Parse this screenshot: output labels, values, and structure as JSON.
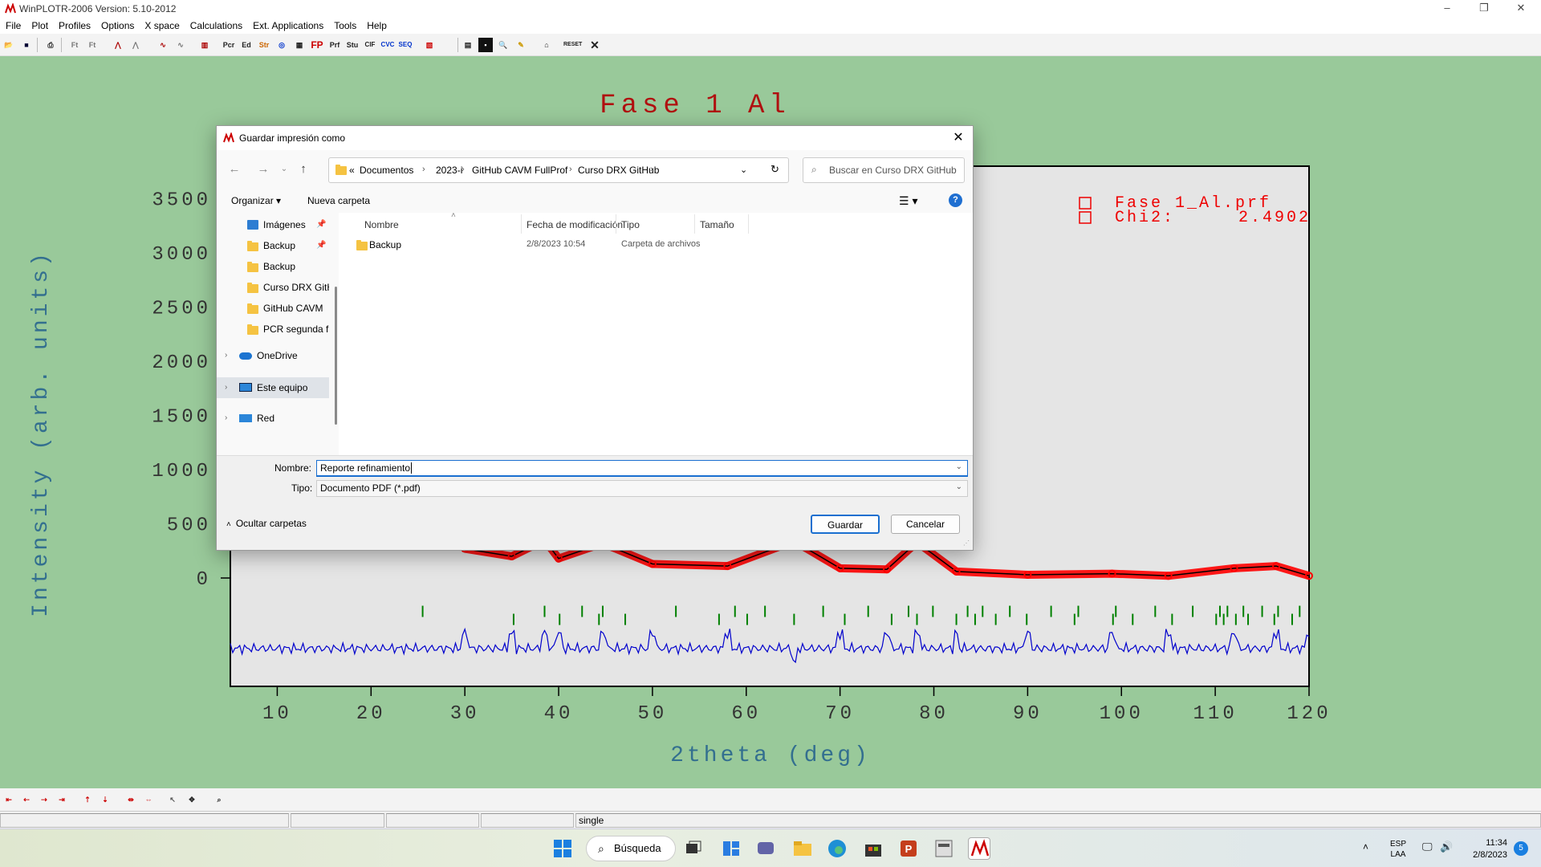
{
  "window": {
    "title": "WinPLOTR-2006 Version: 5.10-2012",
    "controls": [
      "–",
      "❐",
      "✕"
    ]
  },
  "menu": [
    "File",
    "Plot",
    "Profiles",
    "Options",
    "X space",
    "Calculations",
    "Ext. Applications",
    "Tools",
    "Help"
  ],
  "toolbar": {
    "buttons": [
      "Pcr",
      "Ed",
      "Str",
      "FP",
      "Prf",
      "Stu",
      "CIF",
      "CVC",
      "SEQ",
      "RESET"
    ]
  },
  "plot": {
    "title": "Fase 1 Al",
    "legend": [
      "Fase 1_Al.prf",
      "Chi2:",
      "2.4902"
    ],
    "xlabel": "2theta (deg)",
    "ylabel": "Intensity (arb. units)",
    "colors": {
      "background": "#99c99a",
      "observed": "#ff0000",
      "calculated": "#000000",
      "difference": "#0000cc",
      "bragg": "#008000",
      "axis_text": "#336f8f",
      "title": "#b01010"
    }
  },
  "chart_data": {
    "type": "line",
    "title": "Fase 1 Al",
    "xlabel": "2theta (deg)",
    "ylabel": "Intensity (arb. units)",
    "xlim": [
      5,
      120
    ],
    "ylim": [
      -1000,
      3800
    ],
    "xticks": [
      10,
      20,
      30,
      40,
      50,
      60,
      70,
      80,
      90,
      100,
      110,
      120
    ],
    "yticks": [
      0,
      500,
      1000,
      1500,
      2000,
      2500,
      3000,
      3500
    ],
    "series": [
      {
        "name": "Fase 1_Al.prf",
        "x": [
          30,
          35,
          38.5,
          40,
          44.7,
          50,
          58,
          65.1,
          70,
          75,
          78.2,
          82.4,
          90,
          99,
          105,
          112,
          116.5,
          120
        ],
        "y": [
          270,
          200,
          350,
          180,
          320,
          130,
          110,
          340,
          90,
          80,
          330,
          60,
          30,
          40,
          20,
          90,
          110,
          20
        ]
      }
    ],
    "bragg_positions": [
      25.5,
      35.2,
      38.5,
      40.1,
      42.5,
      44.3,
      44.7,
      47.1,
      52.5,
      57.1,
      58.8,
      60.1,
      62.0,
      65.1,
      68.2,
      70.5,
      73.0,
      75.5,
      77.3,
      78.2,
      79.9,
      82.4,
      83.6,
      84.4,
      85.2,
      86.6,
      88.1,
      89.9,
      92.5,
      95.0,
      95.4,
      99.1,
      99.4,
      101.2,
      103.6,
      105.4,
      107.6,
      110.1,
      110.5,
      110.9,
      111.3,
      112.2,
      113.0,
      113.5,
      115.0,
      116.3,
      116.7,
      118.2,
      119.0
    ]
  },
  "dialog": {
    "title": "Guardar impresión como",
    "path": [
      "Documentos",
      "2023-i",
      "GitHub CAVM",
      "FullProf",
      "Curso DRX GitHub"
    ],
    "path_prefix": "«",
    "search_placeholder": "Buscar en Curso DRX GitHub",
    "organize": "Organizar",
    "new_folder": "Nueva carpeta",
    "tree": [
      {
        "label": "Imágenes",
        "type": "pictures"
      },
      {
        "label": "Backup",
        "type": "folder"
      },
      {
        "label": "Backup",
        "type": "folder"
      },
      {
        "label": "Curso DRX GitH",
        "type": "folder"
      },
      {
        "label": "GitHub CAVM",
        "type": "folder"
      },
      {
        "label": "PCR segunda fa",
        "type": "folder"
      },
      {
        "label": "OneDrive",
        "type": "cloud"
      },
      {
        "label": "Este equipo",
        "type": "pc"
      },
      {
        "label": "Red",
        "type": "network"
      }
    ],
    "columns": [
      "Nombre",
      "Fecha de modificación",
      "Tipo",
      "Tamaño"
    ],
    "files": [
      {
        "name": "Backup",
        "date": "2/8/2023 10:54",
        "type": "Carpeta de archivos",
        "size": ""
      }
    ],
    "name_label": "Nombre:",
    "name_value": "Reporte refinamiento",
    "type_label": "Tipo:",
    "type_value": "Documento PDF (*.pdf)",
    "hide_folders": "Ocultar carpetas",
    "save": "Guardar",
    "cancel": "Cancelar"
  },
  "status": {
    "mode": "single"
  },
  "taskbar": {
    "search": "Búsqueda",
    "lang": "ESP",
    "region": "LAA",
    "time": "11:34",
    "date": "2/8/2023",
    "notifications": "5"
  }
}
